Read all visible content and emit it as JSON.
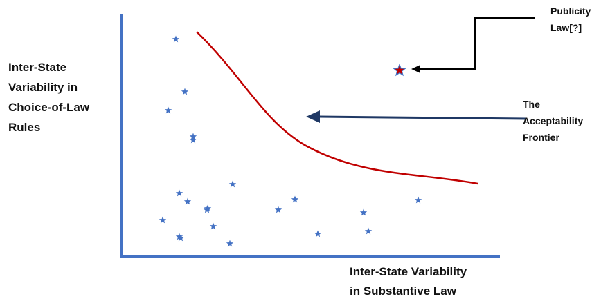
{
  "axes": {
    "y_label_lines": [
      "Inter-State",
      "Variability in",
      "Choice-of-Law",
      "Rules"
    ],
    "x_label_lines": [
      "Inter-State Variability",
      "in Substantive Law"
    ],
    "axis_color": "#4472c4"
  },
  "frontier": {
    "label_lines": [
      "The",
      "Acceptability",
      "Frontier"
    ],
    "curve_color": "#c00000",
    "arrow_color": "#1f3864"
  },
  "outlier": {
    "label_lines": [
      "Publicity",
      "Law[?]"
    ],
    "star_color": "#c00000",
    "arrow_color": "#000000"
  },
  "points": {
    "count": 21,
    "star_color": "#4472c4"
  }
}
